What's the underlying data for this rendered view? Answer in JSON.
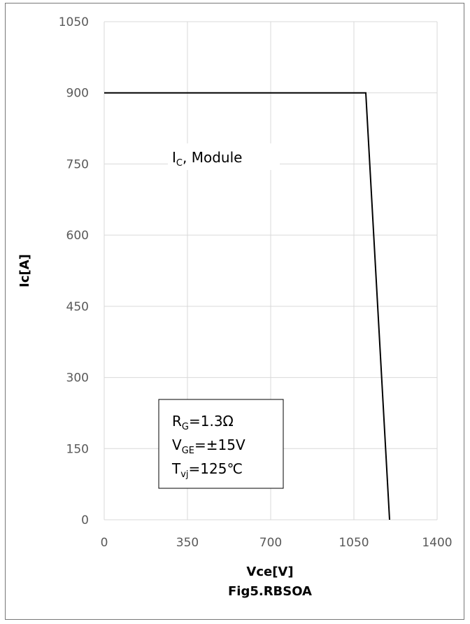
{
  "chart_data": {
    "type": "line",
    "title": "Fig5.RBSOA",
    "xlabel": "Vce[V]",
    "ylabel": "Ic[A]",
    "xlim": [
      0,
      1400
    ],
    "ylim": [
      0,
      1050
    ],
    "xticks": [
      0,
      350,
      700,
      1050,
      1400
    ],
    "yticks": [
      0,
      150,
      300,
      450,
      600,
      750,
      900,
      1050
    ],
    "grid": true,
    "series": [
      {
        "name": "",
        "color": "#000000",
        "x": [
          0,
          1100,
          1200
        ],
        "y": [
          900,
          900,
          0
        ]
      }
    ],
    "annotations": {
      "module": {
        "main": "I",
        "sub": "C",
        "rest": ", Module"
      },
      "conditions": [
        {
          "main": "R",
          "sub": "G",
          "rest": "=1.3Ω"
        },
        {
          "main": "V",
          "sub": "GE",
          "rest": "=±15V"
        },
        {
          "main": "T",
          "sub": "vj",
          "rest": "=125℃"
        }
      ]
    }
  }
}
